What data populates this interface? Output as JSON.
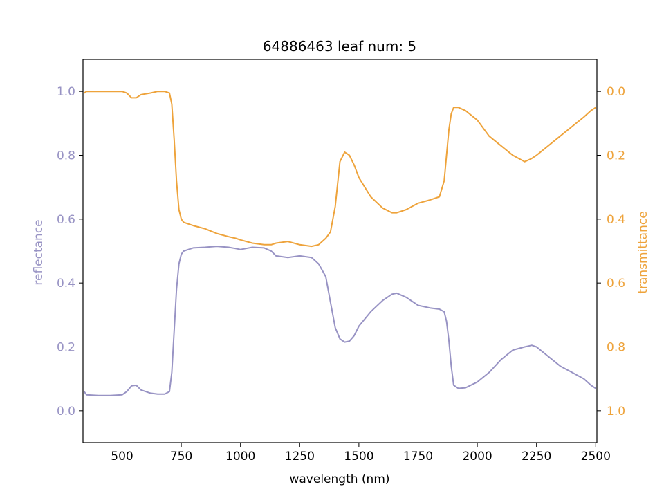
{
  "chart_data": {
    "type": "line",
    "title": "64886463 leaf num: 5",
    "xlabel": "wavelength (nm)",
    "ylabel_left": "reflectance",
    "ylabel_right": "transmittance",
    "xlim": [
      335,
      2505
    ],
    "ylim_left": [
      -0.1,
      1.1
    ],
    "ylim_right": [
      1.1,
      -0.1
    ],
    "right_axis_inverted": true,
    "x_ticks": [
      500,
      750,
      1000,
      1250,
      1500,
      1750,
      2000,
      2250,
      2500
    ],
    "x_tick_labels": [
      "500",
      "750",
      "1000",
      "1250",
      "1500",
      "1750",
      "2000",
      "2250",
      "2500"
    ],
    "y_left_ticks": [
      0.0,
      0.2,
      0.4,
      0.6,
      0.8,
      1.0
    ],
    "y_left_tick_labels": [
      "0.0",
      "0.2",
      "0.4",
      "0.6",
      "0.8",
      "1.0"
    ],
    "y_right_ticks": [
      0.0,
      0.2,
      0.4,
      0.6,
      0.8,
      1.0
    ],
    "y_right_tick_labels": [
      "0.0",
      "0.2",
      "0.4",
      "0.6",
      "0.8",
      "1.0"
    ],
    "grid": false,
    "colors": {
      "reflectance": "#9893c4",
      "transmittance": "#eea33b"
    },
    "series": [
      {
        "name": "reflectance",
        "axis": "left",
        "x": [
          340,
          350,
          400,
          450,
          500,
          520,
          540,
          560,
          580,
          620,
          650,
          680,
          700,
          710,
          720,
          730,
          740,
          750,
          760,
          780,
          800,
          850,
          900,
          950,
          980,
          1000,
          1050,
          1100,
          1130,
          1150,
          1200,
          1250,
          1300,
          1330,
          1360,
          1380,
          1400,
          1420,
          1440,
          1460,
          1480,
          1500,
          1550,
          1600,
          1640,
          1660,
          1700,
          1750,
          1800,
          1840,
          1860,
          1870,
          1880,
          1890,
          1900,
          1920,
          1950,
          2000,
          2050,
          2100,
          2150,
          2200,
          2230,
          2250,
          2300,
          2350,
          2400,
          2450,
          2480,
          2500
        ],
        "y": [
          0.06,
          0.05,
          0.048,
          0.048,
          0.05,
          0.06,
          0.078,
          0.08,
          0.065,
          0.055,
          0.052,
          0.052,
          0.06,
          0.12,
          0.25,
          0.38,
          0.46,
          0.49,
          0.5,
          0.505,
          0.51,
          0.512,
          0.515,
          0.512,
          0.508,
          0.505,
          0.512,
          0.51,
          0.5,
          0.485,
          0.48,
          0.485,
          0.48,
          0.46,
          0.42,
          0.34,
          0.26,
          0.225,
          0.215,
          0.218,
          0.235,
          0.265,
          0.31,
          0.345,
          0.365,
          0.368,
          0.355,
          0.33,
          0.322,
          0.318,
          0.31,
          0.28,
          0.22,
          0.14,
          0.08,
          0.07,
          0.072,
          0.09,
          0.12,
          0.16,
          0.19,
          0.2,
          0.205,
          0.2,
          0.17,
          0.14,
          0.12,
          0.1,
          0.08,
          0.07
        ]
      },
      {
        "name": "transmittance",
        "axis": "right",
        "x": [
          340,
          350,
          400,
          450,
          500,
          520,
          540,
          560,
          580,
          620,
          650,
          680,
          700,
          710,
          720,
          730,
          740,
          750,
          760,
          780,
          800,
          850,
          900,
          950,
          980,
          1000,
          1050,
          1100,
          1130,
          1150,
          1200,
          1250,
          1300,
          1330,
          1360,
          1380,
          1400,
          1420,
          1440,
          1460,
          1480,
          1500,
          1550,
          1600,
          1640,
          1660,
          1700,
          1750,
          1800,
          1840,
          1860,
          1870,
          1880,
          1890,
          1900,
          1920,
          1950,
          2000,
          2050,
          2100,
          2150,
          2200,
          2230,
          2250,
          2300,
          2350,
          2400,
          2450,
          2480,
          2500
        ],
        "y": [
          0.005,
          0.0,
          0.0,
          0.0,
          0.0,
          0.005,
          0.02,
          0.02,
          0.01,
          0.005,
          0.0,
          0.0,
          0.005,
          0.04,
          0.15,
          0.28,
          0.37,
          0.4,
          0.41,
          0.415,
          0.42,
          0.43,
          0.445,
          0.455,
          0.46,
          0.465,
          0.475,
          0.48,
          0.48,
          0.475,
          0.47,
          0.48,
          0.485,
          0.48,
          0.46,
          0.44,
          0.36,
          0.22,
          0.19,
          0.2,
          0.23,
          0.27,
          0.33,
          0.365,
          0.38,
          0.38,
          0.37,
          0.35,
          0.34,
          0.33,
          0.28,
          0.2,
          0.12,
          0.07,
          0.05,
          0.05,
          0.06,
          0.09,
          0.14,
          0.17,
          0.2,
          0.22,
          0.21,
          0.2,
          0.17,
          0.14,
          0.11,
          0.08,
          0.06,
          0.05
        ]
      }
    ]
  }
}
